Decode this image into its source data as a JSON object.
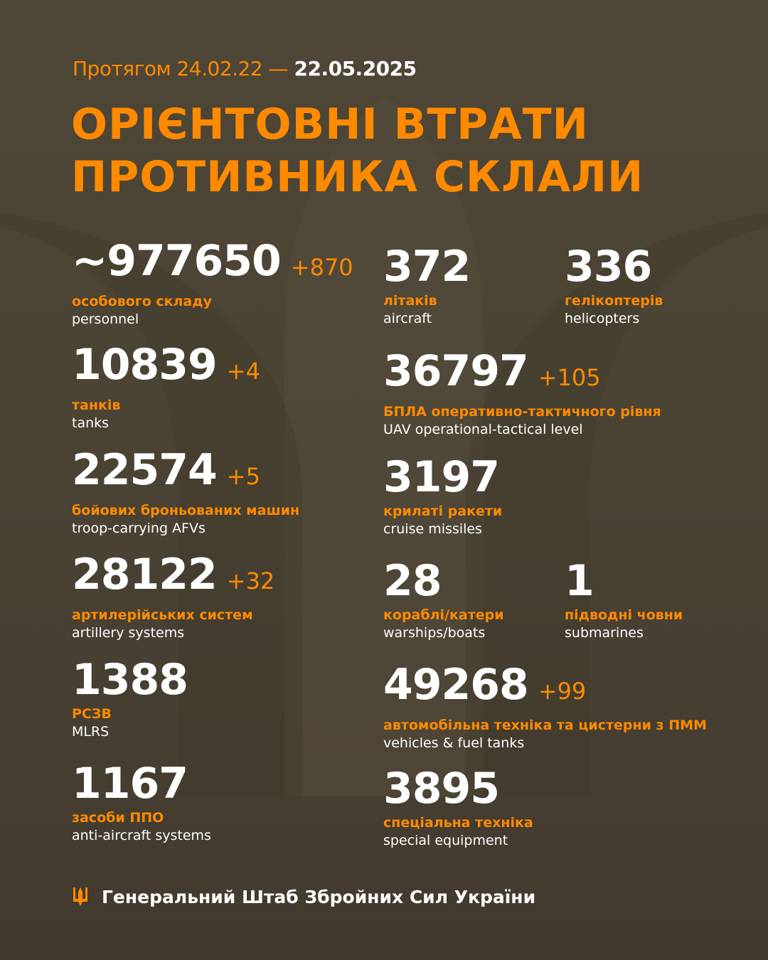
{
  "header": {
    "period_prefix": "Протягом 24.02.22 —",
    "period_end": "22.05.2025",
    "title_line1": "ОРІЄНТОВНІ ВТРАТИ",
    "title_line2": "ПРОТИВНИКА СКЛАЛИ"
  },
  "colors": {
    "accent": "#ff8a00",
    "background": "#4a4334"
  },
  "stats": {
    "personnel": {
      "value": "~977650",
      "delta": "+870",
      "ua": "особового складу",
      "en": "personnel"
    },
    "tanks": {
      "value": "10839",
      "delta": "+4",
      "ua": "танків",
      "en": "tanks"
    },
    "afv": {
      "value": "22574",
      "delta": "+5",
      "ua": "бойових броньованих машин",
      "en": "troop-carrying AFVs"
    },
    "artillery": {
      "value": "28122",
      "delta": "+32",
      "ua": "артилерійських систем",
      "en": "artillery systems"
    },
    "mlrs": {
      "value": "1388",
      "ua": "РСЗВ",
      "en": "MLRS"
    },
    "air_defense": {
      "value": "1167",
      "ua": "засоби ППО",
      "en": "anti-aircraft systems"
    },
    "aircraft": {
      "value": "372",
      "ua": "літаків",
      "en": "aircraft"
    },
    "helicopters": {
      "value": "336",
      "ua": "гелікоптерів",
      "en": "helicopters"
    },
    "uav": {
      "value": "36797",
      "delta": "+105",
      "ua": "БПЛА оперативно-тактичного рівня",
      "en": "UAV operational-tactical level"
    },
    "cruise": {
      "value": "3197",
      "ua": "крилаті ракети",
      "en": "cruise missiles"
    },
    "warships": {
      "value": "28",
      "ua": "кораблі/катери",
      "en": "warships/boats"
    },
    "submarines": {
      "value": "1",
      "ua": "підводні човни",
      "en": "submarines"
    },
    "vehicles": {
      "value": "49268",
      "delta": "+99",
      "ua": "автомобільна техніка та цистерни з ПММ",
      "en": "vehicles & fuel tanks"
    },
    "special": {
      "value": "3895",
      "ua": "спеціальна техніка",
      "en": "special equipment"
    }
  },
  "footer": {
    "icon": "trident-icon",
    "text": "Генеральний Штаб Збройних Сил України"
  }
}
